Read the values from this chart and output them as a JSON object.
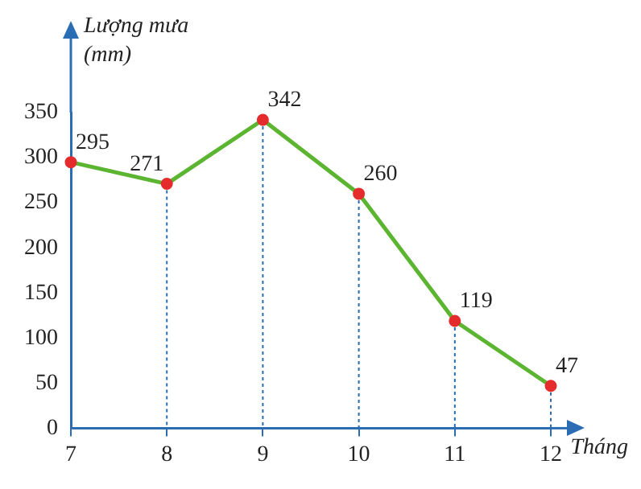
{
  "chart_data": {
    "type": "line",
    "xlabel": "Tháng",
    "ylabel": "Lượng mưa (mm)",
    "categories": [
      "7",
      "8",
      "9",
      "10",
      "11",
      "12"
    ],
    "series": [
      {
        "color": "#5cb531",
        "values": [
          295,
          271,
          342,
          260,
          119,
          47
        ]
      }
    ],
    "ylim": [
      0,
      350
    ],
    "yticks": [
      0,
      50,
      100,
      150,
      200,
      250,
      300,
      350
    ],
    "grid": "x",
    "legend": false,
    "marker": "circle",
    "line_style": "solid",
    "data_labels": true
  }
}
